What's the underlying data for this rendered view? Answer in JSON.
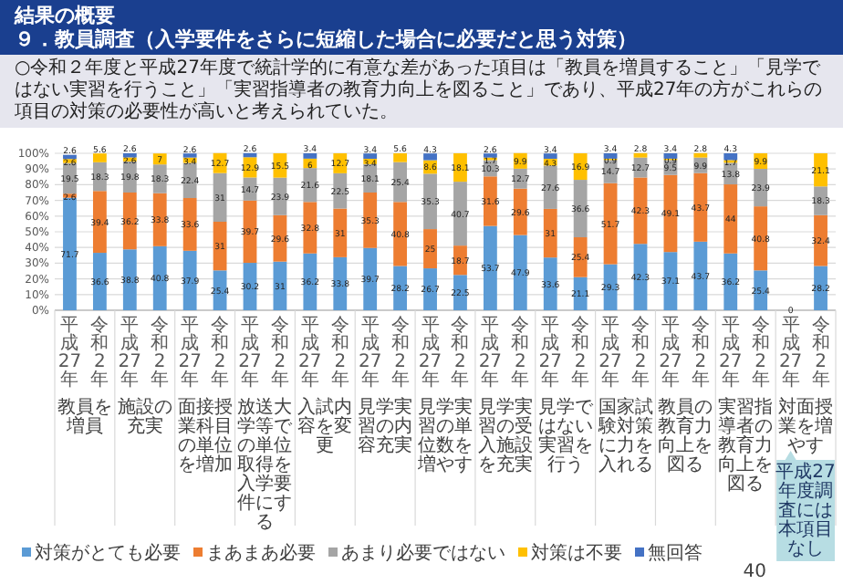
{
  "chart_data": {
    "type": "bar",
    "stacked": true,
    "title": "結果の概要",
    "subtitle": "９．教員調査（入学要件をさらに短縮した場合に必要だと思う対策）",
    "categories": [
      "平成27年",
      "令和2年",
      "平成27年",
      "令和2年",
      "平成27年",
      "令和2年",
      "平成27年",
      "令和2年",
      "平成27年",
      "令和2年",
      "平成27年",
      "令和2年",
      "平成27年",
      "令和2年",
      "平成27年",
      "令和2年",
      "平成27年",
      "令和2年",
      "平成27年",
      "令和2年",
      "平成27年",
      "令和2年",
      "平成27年",
      "令和2年",
      "平成27年",
      "令和2年"
    ],
    "series": [
      {
        "name": "対策がとても必要",
        "color": "#5b9bd5",
        "values": [
          71.7,
          36.6,
          38.8,
          40.8,
          37.9,
          25.4,
          30.2,
          31,
          36.2,
          33.8,
          39.7,
          28.2,
          26.7,
          22.5,
          53.7,
          47.9,
          33.6,
          21.1,
          29.3,
          42.3,
          37.1,
          43.7,
          36.2,
          25.4,
          0,
          28.2
        ]
      },
      {
        "name": "まあまあ必要",
        "color": "#ed7d31",
        "values": [
          2.6,
          39.4,
          36.2,
          33.8,
          33.6,
          31,
          39.7,
          29.6,
          32.8,
          31,
          35.3,
          40.8,
          25,
          18.7,
          31.6,
          29.6,
          31,
          25.4,
          51.7,
          42.3,
          49.1,
          43.7,
          44,
          40.8,
          null,
          32.4
        ]
      },
      {
        "name": "あまり必要ではない",
        "color": "#a5a5a5",
        "values": [
          19.5,
          18.3,
          19.8,
          18.3,
          22.4,
          31,
          14.7,
          23.9,
          21.6,
          22.5,
          18.1,
          25.4,
          35.3,
          40.7,
          10.3,
          12.7,
          27.6,
          36.6,
          14.7,
          12.7,
          9.5,
          9.9,
          13.8,
          23.9,
          null,
          18.3
        ]
      },
      {
        "name": "対策は不要",
        "color": "#ffc000",
        "values": [
          2.6,
          5.6,
          2.6,
          7,
          3.4,
          12.7,
          12.9,
          15.5,
          6,
          12.7,
          3.4,
          5.6,
          8.6,
          18.1,
          1.7,
          9.9,
          4.3,
          16.9,
          0.9,
          2.8,
          0.9,
          2.8,
          1.7,
          9.9,
          null,
          21.1
        ]
      },
      {
        "name": "無回答",
        "color": "#4472c4",
        "values": [
          2.6,
          null,
          2.6,
          null,
          2.6,
          null,
          2.6,
          null,
          3.4,
          null,
          3.4,
          null,
          4.3,
          null,
          2.6,
          null,
          3.4,
          null,
          3.4,
          null,
          3.4,
          null,
          4.3,
          null,
          null,
          null
        ]
      }
    ],
    "data_labels": true,
    "ylim": [
      0,
      100
    ],
    "yticks": [
      {
        "value": 0,
        "label": "0%"
      },
      {
        "value": 10,
        "label": "10%"
      },
      {
        "value": 20,
        "label": "20%"
      },
      {
        "value": 30,
        "label": "30%"
      },
      {
        "value": 40,
        "label": "40%"
      },
      {
        "value": 50,
        "label": "50%"
      },
      {
        "value": 60,
        "label": "60%"
      },
      {
        "value": 70,
        "label": "70%"
      },
      {
        "value": 80,
        "label": "80%"
      },
      {
        "value": 90,
        "label": "90%"
      },
      {
        "value": 100,
        "label": "100%"
      }
    ],
    "grid": "y",
    "legend": "bottom",
    "annotations": [
      "○令和２年度と平成27年度で統計学的に有意な差があった項目は「教員を増員すること」「見学ではない実習を行うこと」「実習指導者の教育力向上を図ること」であり、平成27年の方がこれらの項目の対策の必要性が高いと考えられていた。",
      "教員を増員",
      "施設の充実",
      "面接授業科目の単位を増加",
      "放送大学等での単位取得を入学要件にする",
      "入試内容を変更",
      "見学実習の内容充実",
      "見学実習の単位数を増やす",
      "見学実習の受入施設を充実",
      "見学ではない実習を行う",
      "国家試験対策に力を入れる",
      "教員の教育力向上を図る",
      "実習指導者の教育力向上を図る",
      "対面授業を増やす",
      "平成27年度調査には本項目なし",
      "40"
    ]
  }
}
